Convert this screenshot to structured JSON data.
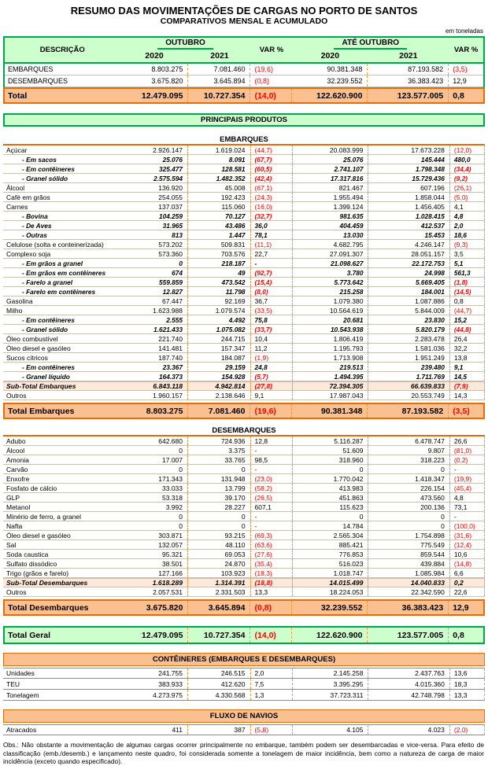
{
  "title": "RESUMO DAS MOVIMENTAÇÕES DE CARGAS NO PORTO DE SANTOS",
  "subtitle": "COMPARATIVOS MENSAL E ACUMULADO",
  "unit_note": "em toneladas",
  "header": {
    "description": "DESCRIÇÃO",
    "month_group": "OUTUBRO",
    "ytd_group": "ATÉ OUTUBRO",
    "var": "VAR %",
    "year_2020": "2020",
    "year_2021": "2021"
  },
  "colors": {
    "green_fill": "#CCFFCC",
    "green_border": "#00A550",
    "orange_fill": "#FAC090",
    "orange_border": "#E46C0A",
    "peach_fill": "#FDE9D9",
    "dashed_separator": "#F79646",
    "negative_text": "#FF0000"
  },
  "summary": {
    "rows": [
      {
        "label": "EMBARQUES",
        "style": "summary",
        "values": [
          "8.803.275",
          "7.081.460",
          "(19,6)",
          "90.381.348",
          "87.193.582",
          "(3,5)"
        ]
      },
      {
        "label": "DESEMBARQUES",
        "style": "summary",
        "values": [
          "3.675.820",
          "3.645.894",
          "(0,8)",
          "32.239.552",
          "36.383.423",
          "12,9"
        ]
      }
    ],
    "total": {
      "label": "Total",
      "style": "total",
      "values": [
        "12.479.095",
        "10.727.354",
        "(14,0)",
        "122.620.900",
        "123.577.005",
        "0,8"
      ]
    }
  },
  "principais_produtos": "PRINCIPAIS PRODUTOS",
  "embarques": {
    "title": "EMBARQUES",
    "rows": [
      {
        "label": "Açúcar",
        "style": "plain",
        "values": [
          "2.926.147",
          "1.619.024",
          "(44,7)",
          "20.083.999",
          "17.673.228",
          "(12,0)"
        ]
      },
      {
        "label": "- Em sacos",
        "style": "sub",
        "values": [
          "25.076",
          "8.091",
          "(67,7)",
          "25.076",
          "145.444",
          "480,0"
        ]
      },
      {
        "label": "- Em contêineres",
        "style": "sub",
        "values": [
          "325.477",
          "128.581",
          "(60,5)",
          "2.741.107",
          "1.798.348",
          "(34,4)"
        ]
      },
      {
        "label": "- Granel sólido",
        "style": "sub",
        "values": [
          "2.575.594",
          "1.482.352",
          "(42,4)",
          "17.317.816",
          "15.729.436",
          "(9,2)"
        ]
      },
      {
        "label": "Álcool",
        "style": "plain",
        "values": [
          "136.920",
          "45.008",
          "(67,1)",
          "821.467",
          "607.196",
          "(26,1)"
        ]
      },
      {
        "label": "Café em grãos",
        "style": "plain",
        "values": [
          "254.055",
          "192.423",
          "(24,3)",
          "1.955.494",
          "1.858.044",
          "(5,0)"
        ]
      },
      {
        "label": "Carnes",
        "style": "plain",
        "values": [
          "137.037",
          "115.060",
          "(16,0)",
          "1.399.124",
          "1.456.405",
          "4,1"
        ]
      },
      {
        "label": "- Bovina",
        "style": "sub",
        "values": [
          "104.259",
          "70.127",
          "(32,7)",
          "981.635",
          "1.028.415",
          "4,8"
        ]
      },
      {
        "label": "- De Aves",
        "style": "sub",
        "values": [
          "31.965",
          "43.486",
          "36,0",
          "404.459",
          "412.537",
          "2,0"
        ]
      },
      {
        "label": "- Outras",
        "style": "sub",
        "values": [
          "813",
          "1.447",
          "78,1",
          "13.030",
          "15.453",
          "18,6"
        ]
      },
      {
        "label": "Celulose (solta e conteinerizada)",
        "style": "plain",
        "values": [
          "573.202",
          "509.831",
          "(11,1)",
          "4.682.795",
          "4.246.147",
          "(9,3)"
        ]
      },
      {
        "label": "Complexo soja",
        "style": "plain",
        "values": [
          "573.360",
          "703.576",
          "22,7",
          "27.091.307",
          "28.051.157",
          "3,5"
        ]
      },
      {
        "label": "- Em grãos a granel",
        "style": "sub",
        "values": [
          "0",
          "218.187",
          "-",
          "21.098.627",
          "22.172.753",
          "5,1"
        ]
      },
      {
        "label": "- Em grãos em contêineres",
        "style": "sub",
        "values": [
          "674",
          "49",
          "(92,7)",
          "3.780",
          "24.998",
          "561,3"
        ]
      },
      {
        "label": "- Farelo a granel",
        "style": "sub",
        "values": [
          "559.859",
          "473.542",
          "(15,4)",
          "5.773.642",
          "5.669.405",
          "(1,8)"
        ]
      },
      {
        "label": "- Farelo em contêineres",
        "style": "sub",
        "values": [
          "12.827",
          "11.798",
          "(8,0)",
          "215.258",
          "184.001",
          "(14,5)"
        ]
      },
      {
        "label": "Gasolina",
        "style": "plain",
        "values": [
          "67.447",
          "92.169",
          "36,7",
          "1.079.380",
          "1.087.886",
          "0,8"
        ]
      },
      {
        "label": "Milho",
        "style": "plain",
        "values": [
          "1.623.988",
          "1.079.574",
          "(33,5)",
          "10.564.619",
          "5.844.009",
          "(44,7)"
        ]
      },
      {
        "label": "- Em contêineres",
        "style": "sub",
        "values": [
          "2.555",
          "4.492",
          "75,8",
          "20.681",
          "23.830",
          "15,2"
        ]
      },
      {
        "label": "- Granel sólido",
        "style": "sub",
        "values": [
          "1.621.433",
          "1.075.082",
          "(33,7)",
          "10.543.938",
          "5.820.179",
          "(44,8)"
        ]
      },
      {
        "label": "Óleo combustível",
        "style": "plain",
        "values": [
          "221.740",
          "244.715",
          "10,4",
          "1.806.419",
          "2.283.478",
          "26,4"
        ]
      },
      {
        "label": "Óleo diesel e gasóleo",
        "style": "plain",
        "values": [
          "141.481",
          "157.347",
          "11,2",
          "1.195.793",
          "1.581.036",
          "32,2"
        ]
      },
      {
        "label": "Sucos cítricos",
        "style": "plain",
        "values": [
          "187.740",
          "184.087",
          "(1,9)",
          "1.713.908",
          "1.951.249",
          "13,8"
        ]
      },
      {
        "label": "- Em contêineres",
        "style": "sub",
        "values": [
          "23.367",
          "29.159",
          "24,8",
          "219.513",
          "239.480",
          "9,1"
        ]
      },
      {
        "label": "- Granel líquido",
        "style": "sub",
        "values": [
          "164.373",
          "154.928",
          "(5,7)",
          "1.494.395",
          "1.711.769",
          "14,5"
        ]
      },
      {
        "label": "Sub-Total Embarques",
        "style": "subtotal",
        "values": [
          "6.843.118",
          "4.942.814",
          "(27,8)",
          "72.394.305",
          "66.639.833",
          "(7,9)"
        ]
      },
      {
        "label": "Outros",
        "style": "plain",
        "values": [
          "1.960.157",
          "2.138.646",
          "9,1",
          "17.987.043",
          "20.553.749",
          "14,3"
        ]
      }
    ],
    "total": {
      "label": "Total Embarques",
      "style": "total",
      "values": [
        "8.803.275",
        "7.081.460",
        "(19,6)",
        "90.381.348",
        "87.193.582",
        "(3,5)"
      ]
    }
  },
  "desembarques": {
    "title": "DESEMBARQUES",
    "rows": [
      {
        "label": "Adubo",
        "style": "plain",
        "values": [
          "642.680",
          "724.936",
          "12,8",
          "5.116.287",
          "6.478.747",
          "26,6"
        ]
      },
      {
        "label": "Álcool",
        "style": "plain",
        "values": [
          "0",
          "3.375",
          "-",
          "51.609",
          "9.807",
          "(81,0)"
        ]
      },
      {
        "label": "Amonia",
        "style": "plain",
        "values": [
          "17.007",
          "33.765",
          "98,5",
          "318.960",
          "318.223",
          "(0,2)"
        ]
      },
      {
        "label": "Carvão",
        "style": "plain",
        "values": [
          "0",
          "0",
          "-",
          "0",
          "0",
          "-"
        ]
      },
      {
        "label": "Enxofre",
        "style": "plain",
        "values": [
          "171.343",
          "131.948",
          "(23,0)",
          "1.770.042",
          "1.418.347",
          "(19,9)"
        ]
      },
      {
        "label": "Fosfato de cálcio",
        "style": "plain",
        "values": [
          "33.033",
          "13.799",
          "(58,2)",
          "413.983",
          "226.154",
          "(45,4)"
        ]
      },
      {
        "label": "GLP",
        "style": "plain",
        "values": [
          "53.318",
          "39.170",
          "(26,5)",
          "451.863",
          "473.560",
          "4,8"
        ]
      },
      {
        "label": "Metanol",
        "style": "plain",
        "values": [
          "3.992",
          "28.227",
          "607,1",
          "115.623",
          "200.136",
          "73,1"
        ]
      },
      {
        "label": "Minério de ferro, a granel",
        "style": "plain",
        "values": [
          "0",
          "0",
          "-",
          "0",
          "0",
          "-"
        ]
      },
      {
        "label": "Nafta",
        "style": "plain",
        "values": [
          "0",
          "0",
          "-",
          "14.784",
          "0",
          "(100,0)"
        ]
      },
      {
        "label": "Óleo diesel e gasóleo",
        "style": "plain",
        "values": [
          "303.871",
          "93.215",
          "(69,3)",
          "2.565.304",
          "1.754.898",
          "(31,6)"
        ]
      },
      {
        "label": "Sal",
        "style": "plain",
        "values": [
          "132.057",
          "48.110",
          "(63,6)",
          "885.421",
          "775.549",
          "(12,4)"
        ]
      },
      {
        "label": "Soda caustica",
        "style": "plain",
        "values": [
          "95.321",
          "69.053",
          "(27,6)",
          "776.853",
          "859.544",
          "10,6"
        ]
      },
      {
        "label": "Sulfato dissódico",
        "style": "plain",
        "values": [
          "38.501",
          "24.870",
          "(35,4)",
          "516.023",
          "439.884",
          "(14,8)"
        ]
      },
      {
        "label": "Trigo (grãos e farelo)",
        "style": "plain",
        "values": [
          "127.166",
          "103.923",
          "(18,3)",
          "1.018.747",
          "1.085.984",
          "6,6"
        ]
      },
      {
        "label": "Sub-Total Desembarques",
        "style": "subtotal",
        "values": [
          "1.618.289",
          "1.314.391",
          "(18,8)",
          "14.015.499",
          "14.040.833",
          "0,2"
        ]
      },
      {
        "label": "Outros",
        "style": "plain",
        "values": [
          "2.057.531",
          "2.331.503",
          "13,3",
          "18.224.053",
          "22.342.590",
          "22,6"
        ]
      }
    ],
    "total": {
      "label": "Total Desembarques",
      "style": "total",
      "values": [
        "3.675.820",
        "3.645.894",
        "(0,8)",
        "32.239.552",
        "36.383.423",
        "12,9"
      ]
    }
  },
  "total_geral": {
    "label": "Total Geral",
    "style": "green-total",
    "values": [
      "12.479.095",
      "10.727.354",
      "(14,0)",
      "122.620.900",
      "123.577.005",
      "0,8"
    ]
  },
  "conteineres": {
    "title": "CONTÊINERES (EMBARQUES E DESEMBARQUES)",
    "rows": [
      {
        "label": "Unidades",
        "style": "plain",
        "values": [
          "241.755",
          "246.515",
          "2,0",
          "2.145.258",
          "2.437.763",
          "13,6"
        ]
      },
      {
        "label": "TEU",
        "style": "plain",
        "values": [
          "383.933",
          "412.620",
          "7,5",
          "3.395.295",
          "4.015.360",
          "18,3"
        ]
      },
      {
        "label": "Tonelagem",
        "style": "plain",
        "values": [
          "4.273.975",
          "4.330.568",
          "1,3",
          "37.723.311",
          "42.748.798",
          "13,3"
        ]
      }
    ]
  },
  "fluxo_navios": {
    "title": "FLUXO DE NAVIOS",
    "rows": [
      {
        "label": "Atracados",
        "style": "plain",
        "values": [
          "411",
          "387",
          "(5,8)",
          "4.105",
          "4.023",
          "(2,0)"
        ]
      }
    ]
  },
  "obs": "Obs.: Não obstante a movimentação de algumas cargas ocorrer principalmente no embarque, também podem ser desembarcadas e vice-versa. Para efeito de classificação (emb./desemb.) e lançamento neste quadro, foi considerada somente a tonelagem de maior incidência, bem como a natureza de carga de maior incidência (exceto quando especificado)."
}
